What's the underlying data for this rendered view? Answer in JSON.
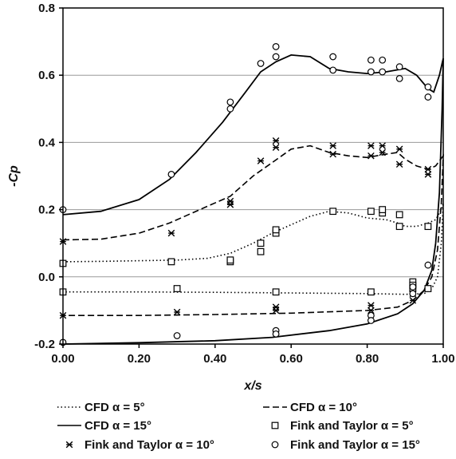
{
  "chart_data": {
    "type": "line",
    "xlabel": "x/s",
    "ylabel": "-Cp",
    "xlim": [
      0,
      1
    ],
    "ylim": [
      -0.2,
      0.8
    ],
    "x_ticks": [
      "0.00",
      "0.20",
      "0.40",
      "0.60",
      "0.80",
      "1.00"
    ],
    "y_ticks": [
      "-0.2",
      "0.0",
      "0.2",
      "0.4",
      "0.6",
      "0.8"
    ],
    "grid": "horizontal",
    "legend_position": "bottom",
    "series": [
      {
        "name": "CFD α =  5°",
        "kind": "line",
        "dash": "dotted",
        "upper": [
          [
            0,
            0.045
          ],
          [
            0.1,
            0.046
          ],
          [
            0.2,
            0.048
          ],
          [
            0.3,
            0.05
          ],
          [
            0.38,
            0.055
          ],
          [
            0.44,
            0.07
          ],
          [
            0.5,
            0.1
          ],
          [
            0.55,
            0.13
          ],
          [
            0.6,
            0.155
          ],
          [
            0.65,
            0.18
          ],
          [
            0.7,
            0.195
          ],
          [
            0.75,
            0.19
          ],
          [
            0.8,
            0.175
          ],
          [
            0.85,
            0.17
          ],
          [
            0.88,
            0.16
          ],
          [
            0.9,
            0.15
          ],
          [
            0.93,
            0.15
          ],
          [
            0.96,
            0.16
          ],
          [
            0.98,
            0.17
          ],
          [
            0.995,
            0.2
          ],
          [
            1.0,
            0.22
          ]
        ],
        "lower": [
          [
            0,
            -0.045
          ],
          [
            0.2,
            -0.045
          ],
          [
            0.4,
            -0.046
          ],
          [
            0.6,
            -0.048
          ],
          [
            0.8,
            -0.05
          ],
          [
            0.9,
            -0.052
          ],
          [
            0.95,
            -0.05
          ],
          [
            0.97,
            -0.035
          ],
          [
            0.985,
            0.0
          ],
          [
            0.995,
            0.1
          ],
          [
            1.0,
            0.22
          ]
        ]
      },
      {
        "name": "CFD α = 10°",
        "kind": "line",
        "dash": "dashed",
        "upper": [
          [
            0,
            0.11
          ],
          [
            0.1,
            0.112
          ],
          [
            0.2,
            0.13
          ],
          [
            0.28,
            0.16
          ],
          [
            0.36,
            0.2
          ],
          [
            0.44,
            0.24
          ],
          [
            0.5,
            0.3
          ],
          [
            0.55,
            0.34
          ],
          [
            0.6,
            0.38
          ],
          [
            0.65,
            0.39
          ],
          [
            0.7,
            0.37
          ],
          [
            0.75,
            0.36
          ],
          [
            0.8,
            0.355
          ],
          [
            0.85,
            0.365
          ],
          [
            0.88,
            0.37
          ],
          [
            0.9,
            0.35
          ],
          [
            0.93,
            0.33
          ],
          [
            0.96,
            0.32
          ],
          [
            0.98,
            0.33
          ],
          [
            1.0,
            0.36
          ]
        ],
        "lower": [
          [
            0,
            -0.115
          ],
          [
            0.2,
            -0.115
          ],
          [
            0.4,
            -0.112
          ],
          [
            0.6,
            -0.108
          ],
          [
            0.8,
            -0.1
          ],
          [
            0.88,
            -0.09
          ],
          [
            0.92,
            -0.07
          ],
          [
            0.95,
            -0.04
          ],
          [
            0.97,
            0.0
          ],
          [
            0.985,
            0.08
          ],
          [
            0.995,
            0.22
          ],
          [
            1.0,
            0.36
          ]
        ]
      },
      {
        "name": "CFD α = 15°",
        "kind": "line",
        "dash": "solid",
        "upper": [
          [
            0,
            0.185
          ],
          [
            0.1,
            0.195
          ],
          [
            0.2,
            0.23
          ],
          [
            0.28,
            0.29
          ],
          [
            0.35,
            0.37
          ],
          [
            0.42,
            0.46
          ],
          [
            0.48,
            0.55
          ],
          [
            0.52,
            0.61
          ],
          [
            0.56,
            0.64
          ],
          [
            0.6,
            0.66
          ],
          [
            0.65,
            0.655
          ],
          [
            0.7,
            0.62
          ],
          [
            0.75,
            0.61
          ],
          [
            0.8,
            0.605
          ],
          [
            0.85,
            0.61
          ],
          [
            0.9,
            0.62
          ],
          [
            0.93,
            0.6
          ],
          [
            0.96,
            0.56
          ],
          [
            0.975,
            0.55
          ],
          [
            0.99,
            0.6
          ],
          [
            1.0,
            0.65
          ]
        ],
        "lower": [
          [
            0,
            -0.2
          ],
          [
            0.2,
            -0.196
          ],
          [
            0.4,
            -0.19
          ],
          [
            0.55,
            -0.18
          ],
          [
            0.7,
            -0.16
          ],
          [
            0.8,
            -0.14
          ],
          [
            0.88,
            -0.11
          ],
          [
            0.92,
            -0.08
          ],
          [
            0.95,
            -0.04
          ],
          [
            0.97,
            0.02
          ],
          [
            0.98,
            0.1
          ],
          [
            0.99,
            0.25
          ],
          [
            0.997,
            0.5
          ],
          [
            1.0,
            0.65
          ]
        ]
      },
      {
        "name": "Fink and Taylor α = 5°",
        "kind": "marker",
        "marker": "square",
        "points": [
          [
            0,
            0.04
          ],
          [
            0,
            -0.045
          ],
          [
            0.285,
            0.045
          ],
          [
            0.3,
            -0.035
          ],
          [
            0.44,
            0.045
          ],
          [
            0.44,
            0.05
          ],
          [
            0.52,
            0.075
          ],
          [
            0.52,
            0.1
          ],
          [
            0.56,
            0.13
          ],
          [
            0.56,
            0.14
          ],
          [
            0.56,
            -0.045
          ],
          [
            0.71,
            0.195
          ],
          [
            0.81,
            0.195
          ],
          [
            0.81,
            -0.045
          ],
          [
            0.84,
            0.19
          ],
          [
            0.84,
            0.2
          ],
          [
            0.885,
            0.15
          ],
          [
            0.885,
            0.185
          ],
          [
            0.92,
            -0.015
          ],
          [
            0.92,
            -0.025
          ],
          [
            0.92,
            -0.035
          ],
          [
            0.96,
            0.15
          ],
          [
            0.96,
            -0.035
          ]
        ]
      },
      {
        "name": "Fink and Taylor α = 10°",
        "kind": "marker",
        "marker": "asterisk",
        "points": [
          [
            0,
            0.105
          ],
          [
            0,
            -0.115
          ],
          [
            0.285,
            0.13
          ],
          [
            0.3,
            -0.105
          ],
          [
            0.44,
            0.215
          ],
          [
            0.44,
            0.225
          ],
          [
            0.52,
            0.345
          ],
          [
            0.56,
            0.385
          ],
          [
            0.56,
            0.405
          ],
          [
            0.56,
            -0.09
          ],
          [
            0.56,
            -0.1
          ],
          [
            0.71,
            0.365
          ],
          [
            0.71,
            0.39
          ],
          [
            0.81,
            0.36
          ],
          [
            0.81,
            0.39
          ],
          [
            0.81,
            -0.085
          ],
          [
            0.81,
            -0.1
          ],
          [
            0.84,
            0.37
          ],
          [
            0.84,
            0.39
          ],
          [
            0.885,
            0.335
          ],
          [
            0.885,
            0.38
          ],
          [
            0.92,
            -0.05
          ],
          [
            0.92,
            -0.07
          ],
          [
            0.96,
            0.305
          ],
          [
            0.96,
            0.32
          ]
        ]
      },
      {
        "name": "Fink and Taylor α = 15°",
        "kind": "marker",
        "marker": "circle",
        "points": [
          [
            0,
            0.2
          ],
          [
            0,
            -0.195
          ],
          [
            0.285,
            0.305
          ],
          [
            0.3,
            -0.175
          ],
          [
            0.44,
            0.5
          ],
          [
            0.44,
            0.52
          ],
          [
            0.52,
            0.635
          ],
          [
            0.56,
            0.655
          ],
          [
            0.56,
            0.685
          ],
          [
            0.56,
            -0.16
          ],
          [
            0.56,
            -0.17
          ],
          [
            0.71,
            0.615
          ],
          [
            0.71,
            0.655
          ],
          [
            0.81,
            0.61
          ],
          [
            0.81,
            0.645
          ],
          [
            0.81,
            -0.115
          ],
          [
            0.81,
            -0.13
          ],
          [
            0.84,
            0.61
          ],
          [
            0.84,
            0.645
          ],
          [
            0.885,
            0.59
          ],
          [
            0.885,
            0.625
          ],
          [
            0.92,
            -0.03
          ],
          [
            0.92,
            -0.05
          ],
          [
            0.96,
            0.535
          ],
          [
            0.96,
            0.565
          ],
          [
            0.96,
            0.035
          ]
        ]
      }
    ]
  }
}
